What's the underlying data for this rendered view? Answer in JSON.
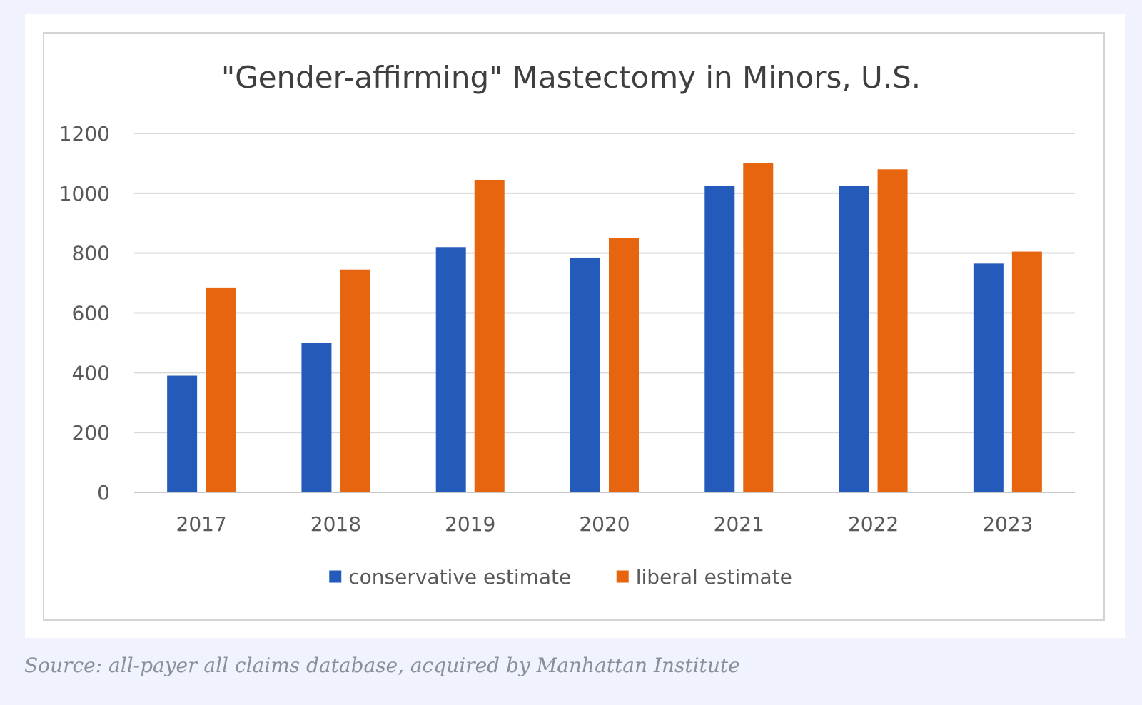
{
  "chart_data": {
    "type": "bar",
    "title": "\"Gender-affirming\" Mastectomy in Minors, U.S.",
    "categories": [
      "2017",
      "2018",
      "2019",
      "2020",
      "2021",
      "2022",
      "2023"
    ],
    "series": [
      {
        "name": "conservative estimate",
        "color": "#245bbb",
        "values": [
          390,
          500,
          820,
          785,
          1025,
          1025,
          765
        ]
      },
      {
        "name": "liberal estimate",
        "color": "#e8650f",
        "values": [
          685,
          745,
          1045,
          850,
          1100,
          1080,
          805
        ]
      }
    ],
    "yticks": [
      "0",
      "200",
      "400",
      "600",
      "800",
      "1000",
      "1200"
    ],
    "ylim": [
      0,
      1200
    ],
    "grid": true,
    "legend_position": "bottom"
  },
  "caption": "Source: all-payer all claims database, acquired by Manhattan Institute"
}
